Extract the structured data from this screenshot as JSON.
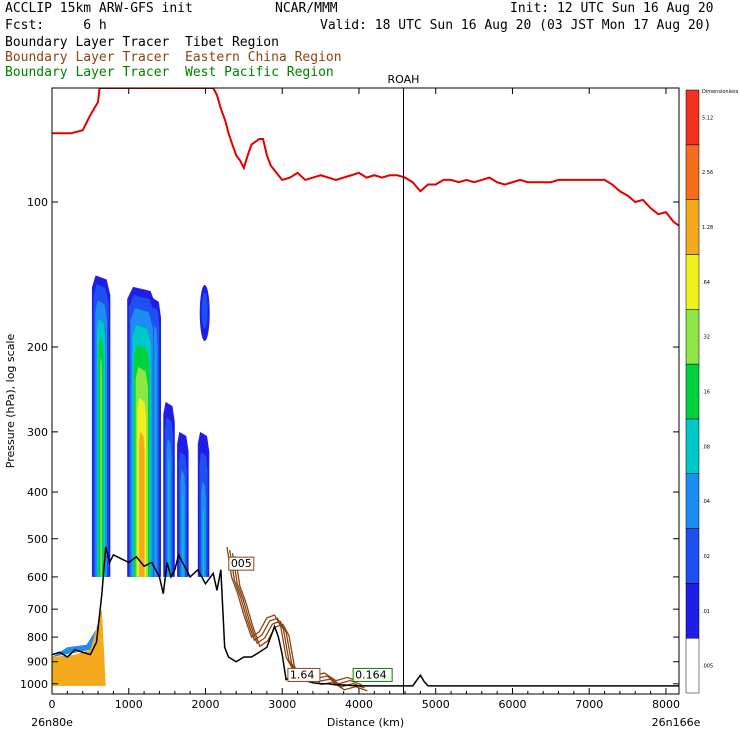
{
  "header": {
    "line1_left": "ACCLIP 15km ARW-GFS init",
    "line1_mid": "NCAR/MMM",
    "line1_right": "Init: 12 UTC Sun 16 Aug 20",
    "line2_left": "Fcst:     6 h",
    "line2_right": "Valid: 18 UTC Sun 16 Aug 20 (03 JST Mon 17 Aug 20)",
    "tracer1": "Boundary Layer Tracer  Tibet Region",
    "tracer2": "Boundary Layer Tracer  Eastern China Region",
    "tracer3": "Boundary Layer Tracer  West Pacific Region"
  },
  "colors": {
    "tracer1": "#000000",
    "tracer2": "#8b4513",
    "tracer3": "#008000",
    "tropopause": "#e00000",
    "terrain": "#000000"
  },
  "chart_data": {
    "type": "heatmap",
    "xlabel": "Distance (km)",
    "ylabel": "Pressure (hPa), log scale",
    "x_ticks": [
      0,
      1000,
      2000,
      3000,
      4000,
      5000,
      6000,
      7000,
      8000
    ],
    "y_ticks": [
      100,
      200,
      300,
      400,
      500,
      600,
      700,
      800,
      900,
      1000
    ],
    "xlim": [
      0,
      8170
    ],
    "ylim_hpa": [
      1050,
      58
    ],
    "y_scale": "log",
    "start_label": "26n80e",
    "end_label": "26n166e",
    "marker": {
      "label": "ROAH",
      "x": 4580
    },
    "colorbar": {
      "levels": [
        ".005",
        ".01",
        ".02",
        ".04",
        ".08",
        ".16",
        ".32",
        ".64",
        "1.28",
        "2.56",
        "5.12"
      ],
      "top_label": "Dimensionless",
      "colors": [
        "#ffffff",
        "#1e1ee6",
        "#1e50f0",
        "#1e8cf0",
        "#00c8c8",
        "#00d23c",
        "#8ce646",
        "#f0f01e",
        "#f5aa1e",
        "#f56e1e",
        "#f0321e"
      ]
    },
    "contour_labels": [
      {
        "text": "005",
        "x": 2330,
        "p": 570,
        "color": "#8b4513"
      },
      {
        "text": "1.64",
        "x": 3100,
        "p": 970,
        "color": "#8b4513"
      },
      {
        "text": "0.164",
        "x": 3950,
        "p": 970,
        "color": "#008000"
      }
    ],
    "tropopause": {
      "x": [
        0,
        250,
        400,
        500,
        600,
        620,
        650,
        900,
        1000,
        1000,
        1050,
        1120,
        1200,
        1300,
        1400,
        1500,
        1550,
        1580,
        1610,
        1640,
        1700,
        1800,
        1900,
        2100,
        2150,
        2200,
        2260,
        2300,
        2350,
        2400,
        2450,
        2500,
        2550,
        2600,
        2650,
        2700,
        2750,
        2800,
        2850,
        2900,
        2950,
        3000,
        3100,
        3200,
        3300,
        3400,
        3500,
        3600,
        3700,
        3800,
        3900,
        4000,
        4100,
        4200,
        4300,
        4400,
        4500,
        4600,
        4700,
        4800,
        4900,
        5000,
        5100,
        5200,
        5300,
        5400,
        5500,
        5600,
        5700,
        5800,
        5900,
        6000,
        6100,
        6200,
        6300,
        6400,
        6500,
        6600,
        6700,
        6800,
        6900,
        7000,
        7100,
        7200,
        7300,
        7400,
        7500,
        7600,
        7700,
        7800,
        7900,
        8000,
        8100,
        8170
      ],
      "p": [
        72,
        72,
        71,
        66,
        62,
        58,
        58,
        58,
        58,
        58,
        58,
        58,
        58,
        58,
        58,
        58,
        58,
        58,
        58,
        58,
        58,
        58,
        58,
        58,
        60,
        64,
        68,
        72,
        76,
        80,
        82,
        85,
        80,
        76,
        75,
        74,
        74,
        80,
        84,
        86,
        88,
        90,
        89,
        87,
        90,
        89,
        88,
        89,
        90,
        89,
        88,
        87,
        89,
        88,
        89,
        88,
        88,
        89,
        91,
        95,
        92,
        92,
        90,
        90,
        91,
        90,
        91,
        90,
        89,
        91,
        92,
        91,
        90,
        91,
        91,
        91,
        91,
        90,
        90,
        90,
        90,
        90,
        90,
        90,
        92,
        95,
        97,
        100,
        99,
        103,
        106,
        105,
        110,
        112
      ]
    },
    "terrain": {
      "x": [
        0,
        100,
        200,
        300,
        400,
        500,
        580,
        650,
        700,
        750,
        800,
        900,
        1000,
        1100,
        1200,
        1300,
        1400,
        1450,
        1500,
        1550,
        1600,
        1650,
        1700,
        1800,
        1900,
        2000,
        2100,
        2150,
        2200,
        2250,
        2300,
        2400,
        2500,
        2600,
        2700,
        2800,
        2900,
        2950,
        3000,
        3050,
        3100,
        3200,
        3300,
        3400,
        3500,
        3600,
        3700,
        3800,
        3900,
        4000,
        4200,
        4400,
        4600,
        4700,
        4750,
        4800,
        4850,
        4900,
        5000,
        6000,
        7000,
        8000,
        8170
      ],
      "p": [
        870,
        860,
        880,
        850,
        860,
        870,
        820,
        650,
        520,
        560,
        540,
        550,
        560,
        545,
        570,
        560,
        600,
        650,
        560,
        600,
        580,
        540,
        560,
        600,
        580,
        620,
        590,
        640,
        580,
        840,
        880,
        900,
        880,
        880,
        860,
        840,
        760,
        800,
        870,
        980,
        970,
        985,
        985,
        995,
        1000,
        1000,
        1005,
        1005,
        1008,
        1010,
        1010,
        1010,
        1010,
        1010,
        985,
        960,
        990,
        1010,
        1010,
        1010,
        1010,
        1010,
        1010
      ]
    },
    "tracer_tibet_fill": {
      "region": "Tibet boundary layer tracer plume, log-scaled shading",
      "column_x": [
        0,
        700,
        1200,
        1700,
        2100
      ],
      "max_level": "1.28"
    }
  }
}
